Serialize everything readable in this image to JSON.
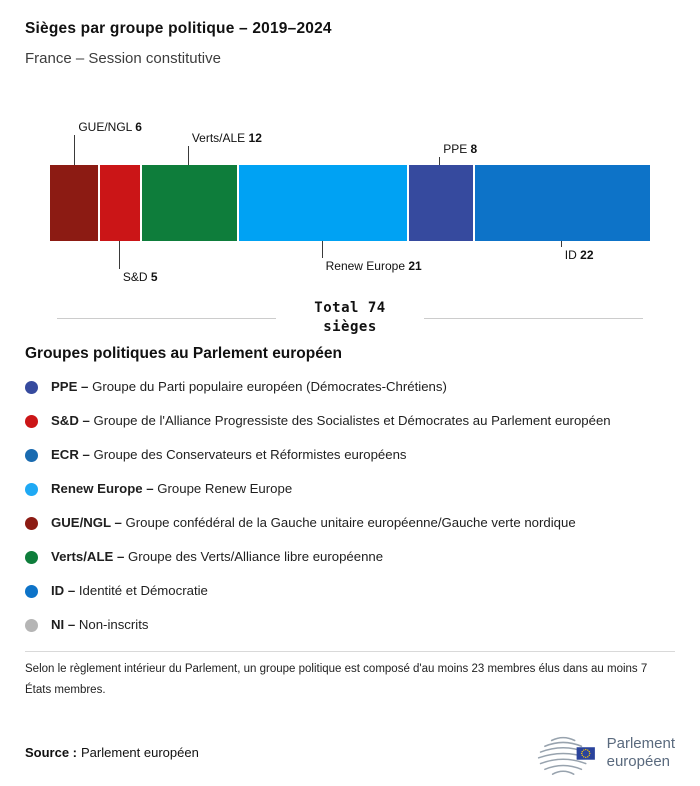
{
  "header": {
    "title": "Sièges par groupe politique – 2019–2024",
    "subtitle": "France – Session constitutive"
  },
  "chart_data": {
    "type": "bar",
    "title": "Sièges par groupe politique – 2019–2024",
    "subtitle": "France – Session constitutive",
    "categories": [
      "GUE/NGL",
      "S&D",
      "Verts/ALE",
      "Renew Europe",
      "PPE",
      "ID"
    ],
    "values": [
      6,
      5,
      12,
      21,
      8,
      22
    ],
    "total": 74,
    "total_label_line1": "Total 74",
    "total_label_line2": "sièges",
    "segments": [
      {
        "name": "GUE/NGL",
        "value": 6,
        "color": "#8c1b13",
        "label_position": "above"
      },
      {
        "name": "S&D",
        "value": 5,
        "color": "#cb1517",
        "label_position": "below"
      },
      {
        "name": "Verts/ALE",
        "value": 12,
        "color": "#0e7d3b",
        "label_position": "above"
      },
      {
        "name": "Renew Europe",
        "value": 21,
        "color": "#00a2f3",
        "label_position": "below"
      },
      {
        "name": "PPE",
        "value": 8,
        "color": "#364a9e",
        "label_position": "above"
      },
      {
        "name": "ID",
        "value": 22,
        "color": "#0d73c8",
        "label_position": "below"
      }
    ]
  },
  "legend": {
    "title": "Groupes politiques au Parlement européen",
    "items": [
      {
        "abbr": "PPE –",
        "name": "Groupe du Parti populaire européen (Démocrates-Chrétiens)",
        "color": "#364a9e"
      },
      {
        "abbr": "S&D –",
        "name": "Groupe de l'Alliance Progressiste des Socialistes et Démocrates au Parlement européen",
        "color": "#cb1517"
      },
      {
        "abbr": "ECR –",
        "name": "Groupe des Conservateurs et Réformistes européens",
        "color": "#1a6bb0"
      },
      {
        "abbr": "Renew Europe –",
        "name": "Groupe Renew Europe",
        "color": "#1fa9f4"
      },
      {
        "abbr": "GUE/NGL –",
        "name": "Groupe confédéral de la Gauche unitaire européenne/Gauche verte nordique",
        "color": "#8c1b13"
      },
      {
        "abbr": "Verts/ALE –",
        "name": "Groupe des Verts/Alliance libre européenne",
        "color": "#0e7d3b"
      },
      {
        "abbr": "ID –",
        "name": "Identité et Démocratie",
        "color": "#0d73c8"
      },
      {
        "abbr": "NI –",
        "name": "Non-inscrits",
        "color": "#b5b5b5"
      }
    ]
  },
  "footnote": "Selon le règlement intérieur du Parlement, un groupe politique est composé d'au moins 23 membres élus dans au moins 7 États membres.",
  "source": {
    "label": "Source :",
    "value": "Parlement européen"
  },
  "logo": {
    "line1": "Parlement",
    "line2": "européen"
  }
}
